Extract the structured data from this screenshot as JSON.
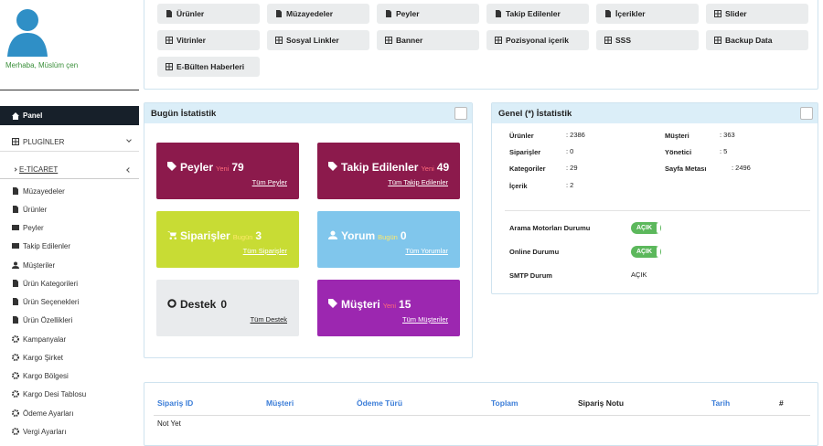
{
  "sidebar": {
    "greeting": "Merhaba, Müslüm çen",
    "menu": [
      "Panel",
      "PLUGİNLER",
      "E-TİCARET",
      "Müzayedeler",
      "Ürünler",
      "Peyler",
      "Takip Edilenler",
      "Müşteriler",
      "Ürün Kategorileri",
      "Ürün Seçenekleri",
      "Ürün Özellikleri",
      "Kampanyalar",
      "Kargo Şirket",
      "Kargo Bölgesi",
      "Kargo Desi Tablosu",
      "Ödeme Ayarları",
      "Vergi Ayarları"
    ]
  },
  "top_buttons": [
    "Ürünler",
    "Müzayedeler",
    "Peyler",
    "Takip Edilenler",
    "İçerikler",
    "Slider",
    "Vitrinler",
    "Sosyal Linkler",
    "Banner",
    "Pozisyonal içerik",
    "SSS",
    "Backup Data",
    "E-Bülten Haberleri"
  ],
  "today_stats": {
    "title": "Bugün İstatistik",
    "cards": [
      {
        "label": "Peyler",
        "tag": "Yeni",
        "value": 79,
        "link": "Tüm Peyler"
      },
      {
        "label": "Takip Edilenler",
        "tag": "Yeni",
        "value": 49,
        "link": "Tüm Takip Edilenler"
      },
      {
        "label": "Siparişler",
        "tag": "Bugün",
        "value": 3,
        "link": "Tüm Siparişler"
      },
      {
        "label": "Yorum",
        "tag": "Bugün",
        "value": 0,
        "link": "Tüm Yorumlar"
      },
      {
        "label": "Destek",
        "value": 0,
        "link": "Tüm Destek"
      },
      {
        "label": "Müşteri",
        "tag": "Yeni",
        "value": 15,
        "link": "Tüm Müşteriler"
      }
    ]
  },
  "general_stats": {
    "title": "Genel (*) İstatistik",
    "stats": [
      {
        "label": "Ürünler",
        "value": ": 2386"
      },
      {
        "label": "Müşteri",
        "value": ": 363"
      },
      {
        "label": "Siparişler",
        "value": ": 0"
      },
      {
        "label": "Yönetici",
        "value": ": 5"
      },
      {
        "label": "Kategoriler",
        "value": ": 29"
      },
      {
        "label": "Sayfa Metası",
        "value": ": 2496"
      },
      {
        "label": "İçerik",
        "value": ": 2"
      }
    ],
    "statuses": [
      {
        "label": "Arama Motorları Durumu",
        "value": "AÇIK"
      },
      {
        "label": "Online Durumu",
        "value": "AÇIK"
      },
      {
        "label": "SMTP Durum",
        "value": "AÇIK"
      }
    ]
  },
  "orders": {
    "columns": [
      "Sipariş ID",
      "Müşteri",
      "Ödeme Türü",
      "Toplam",
      "Sipariş Notu",
      "Tarih",
      "#"
    ],
    "empty": "Not Yet"
  }
}
